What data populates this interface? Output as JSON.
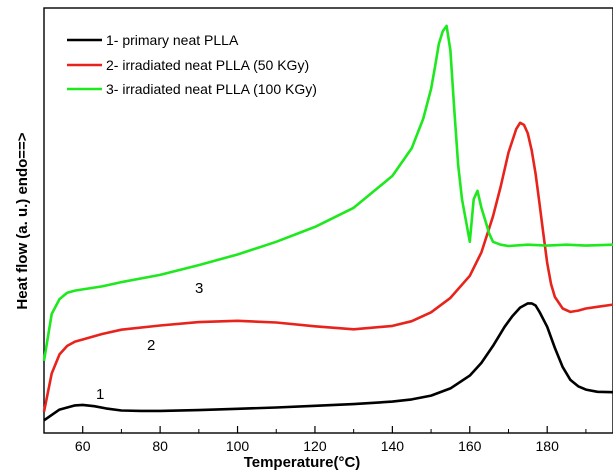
{
  "chart_data": {
    "type": "line",
    "xlabel": "Temperature(°C)",
    "ylabel": "Heat flow (a. u.) endo==>",
    "xlim": [
      50,
      197
    ],
    "ylim": [
      0,
      100
    ],
    "x_ticks": [
      60,
      80,
      100,
      120,
      140,
      160,
      180
    ],
    "y_ticks_shown": false,
    "grid": false,
    "legend_position": "top-left",
    "series": [
      {
        "name": "1- primary neat PLLA",
        "label": "1",
        "color": "#000000",
        "x": [
          50,
          54,
          58,
          60,
          63,
          66,
          70,
          75,
          80,
          90,
          100,
          110,
          120,
          130,
          140,
          145,
          150,
          155,
          160,
          163,
          166,
          169,
          171,
          173,
          175,
          176,
          177,
          178,
          180,
          182,
          184,
          186,
          188,
          190,
          193,
          197
        ],
        "y": [
          3,
          5.5,
          6.5,
          6.6,
          6.3,
          5.8,
          5.3,
          5.2,
          5.2,
          5.4,
          5.7,
          6.0,
          6.4,
          6.8,
          7.4,
          7.9,
          8.8,
          10.5,
          13.5,
          16.5,
          20.5,
          25,
          27.5,
          29.5,
          30.5,
          30.5,
          30,
          28.5,
          25,
          20,
          15.5,
          12.5,
          11,
          10.2,
          9.7,
          9.6
        ]
      },
      {
        "name": "2- irradiated neat PLLA (50 KGy)",
        "label": "2",
        "color": "#e8231c",
        "x": [
          50,
          52,
          54,
          56,
          58,
          60,
          65,
          70,
          80,
          90,
          100,
          110,
          120,
          130,
          140,
          145,
          150,
          155,
          160,
          163,
          166,
          168,
          170,
          172,
          173,
          174,
          175,
          176,
          177,
          178,
          179,
          180,
          181,
          182,
          184,
          186,
          188,
          190,
          193,
          197
        ],
        "y": [
          5,
          14,
          18.5,
          20.5,
          21.5,
          22,
          23.3,
          24.3,
          25.3,
          26.1,
          26.4,
          26.0,
          25.1,
          24.4,
          25.2,
          26.3,
          28.4,
          31.8,
          37,
          42.5,
          51,
          58,
          66,
          71.5,
          73,
          72.5,
          70.5,
          66.5,
          61,
          54,
          47,
          40,
          35,
          32,
          29.3,
          28.5,
          28.8,
          29.3,
          29.7,
          30.2
        ]
      },
      {
        "name": "3- irradiated neat PLLA (100 KGy)",
        "label": "3",
        "color": "#1ee81e",
        "x": [
          50,
          52,
          54,
          56,
          58,
          60,
          65,
          70,
          80,
          90,
          100,
          110,
          120,
          130,
          140,
          145,
          148,
          150,
          151,
          152,
          153,
          154,
          155,
          156,
          157,
          158,
          159,
          160,
          161,
          162,
          163,
          164,
          165,
          166,
          168,
          170,
          175,
          180,
          185,
          190,
          197
        ],
        "y": [
          17,
          28,
          31.5,
          33,
          33.5,
          33.8,
          34.5,
          35.5,
          37.2,
          39.5,
          42,
          45,
          48.5,
          53,
          60.5,
          67,
          74,
          81,
          86,
          91.5,
          94.5,
          95.8,
          90,
          76,
          63,
          55,
          50,
          45,
          55,
          57,
          53,
          50,
          47,
          45,
          44.3,
          44,
          44.3,
          44.1,
          44.3,
          44.1,
          44.3
        ]
      }
    ]
  }
}
